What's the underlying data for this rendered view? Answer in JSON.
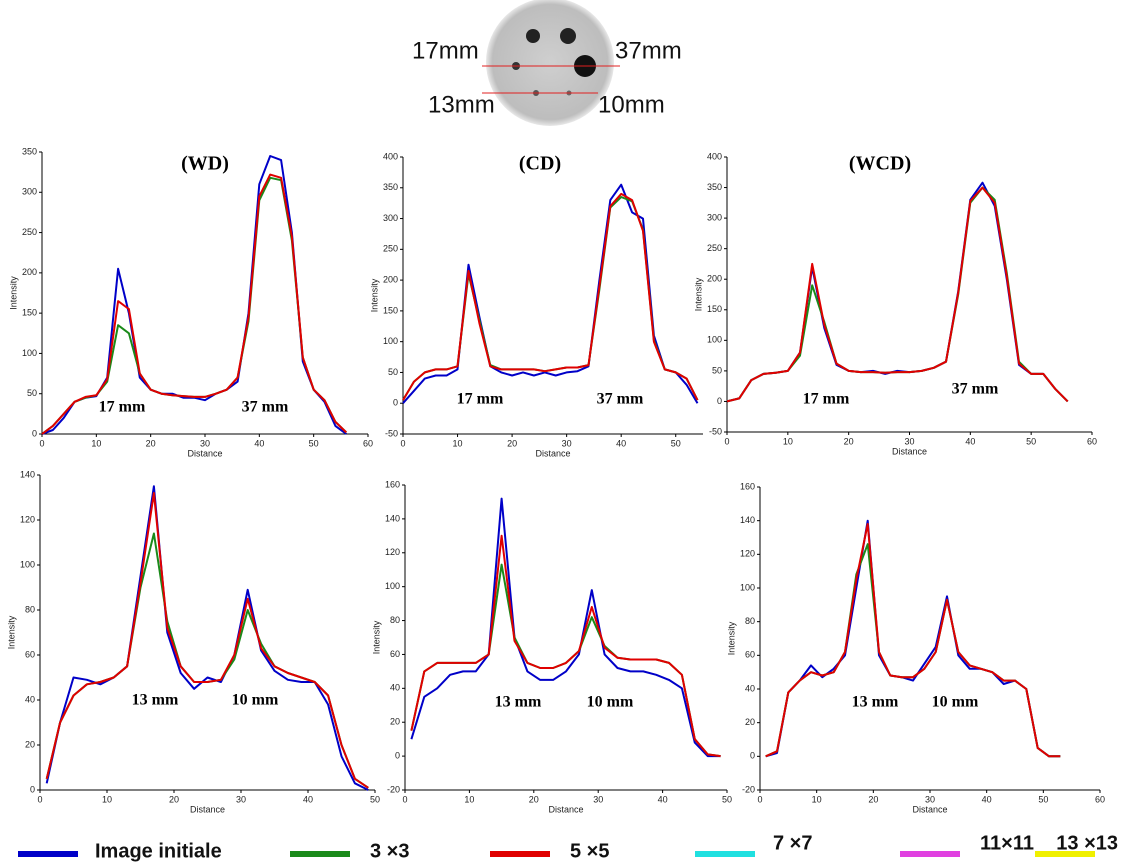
{
  "phantom": {
    "labels": [
      "17mm",
      "37mm",
      "13mm",
      "10mm"
    ]
  },
  "legend": [
    {
      "name": "Image initiale",
      "color": "#0000c8"
    },
    {
      "name": "3 ×3",
      "color": "#1a8a1a"
    },
    {
      "name": "5 ×5",
      "color": "#e00000"
    },
    {
      "name": "7 ×7",
      "color": "#20e0e0"
    },
    {
      "name": "11×11",
      "color": "#e040e0"
    },
    {
      "name": "13 ×13",
      "color": "#f0f000"
    }
  ],
  "chart_data": [
    {
      "type": "line",
      "title": "(WD)",
      "xlabel": "Distance",
      "ylabel": "Intensity",
      "annotations": [
        "17 mm",
        "37 mm"
      ],
      "xlim": [
        0,
        60
      ],
      "ylim": [
        0,
        350
      ],
      "xticks": [
        0,
        10,
        20,
        30,
        40,
        50,
        60
      ],
      "yticks": [
        0,
        50,
        100,
        150,
        200,
        250,
        300,
        350
      ],
      "x": [
        0,
        2,
        4,
        6,
        8,
        10,
        12,
        14,
        16,
        18,
        20,
        22,
        24,
        26,
        28,
        30,
        32,
        34,
        36,
        38,
        40,
        42,
        44,
        46,
        48,
        50,
        52,
        54,
        56
      ],
      "series": [
        {
          "name": "Image initiale",
          "color": "#0000c8",
          "values": [
            0,
            5,
            20,
            40,
            45,
            47,
            70,
            205,
            150,
            70,
            55,
            50,
            50,
            45,
            45,
            42,
            50,
            55,
            65,
            150,
            310,
            345,
            340,
            250,
            90,
            55,
            40,
            10,
            0
          ]
        },
        {
          "name": "3 ×3",
          "color": "#1a8a1a",
          "values": [
            0,
            10,
            25,
            40,
            45,
            48,
            65,
            135,
            125,
            75,
            55,
            50,
            48,
            47,
            46,
            46,
            50,
            55,
            70,
            140,
            290,
            318,
            315,
            240,
            95,
            55,
            42,
            15,
            2
          ]
        },
        {
          "name": "5 ×5",
          "color": "#e00000",
          "values": [
            0,
            10,
            25,
            40,
            46,
            48,
            68,
            165,
            155,
            75,
            55,
            50,
            48,
            47,
            46,
            46,
            50,
            55,
            70,
            145,
            295,
            322,
            318,
            245,
            95,
            55,
            42,
            15,
            2
          ]
        }
      ]
    },
    {
      "type": "line",
      "title": "(CD)",
      "xlabel": "Distance",
      "ylabel": "Intensity",
      "annotations": [
        "17 mm",
        "37 mm"
      ],
      "xlim": [
        0,
        55
      ],
      "ylim": [
        -50,
        400
      ],
      "xticks": [
        0,
        10,
        20,
        30,
        40,
        50
      ],
      "yticks": [
        -50,
        0,
        50,
        100,
        150,
        200,
        250,
        300,
        350,
        400
      ],
      "x": [
        0,
        2,
        4,
        6,
        8,
        10,
        12,
        14,
        16,
        18,
        20,
        22,
        24,
        26,
        28,
        30,
        32,
        34,
        36,
        38,
        40,
        42,
        44,
        46,
        48,
        50,
        52,
        54
      ],
      "series": [
        {
          "name": "Image initiale",
          "color": "#0000c8",
          "values": [
            0,
            20,
            40,
            45,
            45,
            55,
            225,
            140,
            60,
            50,
            45,
            50,
            45,
            50,
            45,
            50,
            52,
            60,
            200,
            330,
            355,
            310,
            300,
            110,
            55,
            50,
            30,
            0
          ]
        },
        {
          "name": "3 ×3",
          "color": "#1a8a1a",
          "values": [
            5,
            35,
            50,
            55,
            55,
            60,
            210,
            135,
            62,
            55,
            55,
            55,
            55,
            52,
            55,
            58,
            58,
            62,
            185,
            318,
            335,
            328,
            282,
            102,
            55,
            50,
            40,
            5
          ]
        },
        {
          "name": "5 ×5",
          "color": "#e00000",
          "values": [
            5,
            35,
            50,
            55,
            55,
            60,
            215,
            130,
            60,
            55,
            55,
            55,
            55,
            52,
            55,
            58,
            58,
            62,
            190,
            320,
            340,
            330,
            280,
            100,
            55,
            50,
            40,
            5
          ]
        }
      ]
    },
    {
      "type": "line",
      "title": "(WCD)",
      "xlabel": "Distance",
      "ylabel": "Intensity",
      "annotations": [
        "17 mm",
        "37 mm"
      ],
      "xlim": [
        0,
        60
      ],
      "ylim": [
        -50,
        400
      ],
      "xticks": [
        0,
        10,
        20,
        30,
        40,
        50,
        60
      ],
      "yticks": [
        -50,
        0,
        50,
        100,
        150,
        200,
        250,
        300,
        350,
        400
      ],
      "x": [
        0,
        2,
        4,
        6,
        8,
        10,
        12,
        14,
        16,
        18,
        20,
        22,
        24,
        26,
        28,
        30,
        32,
        34,
        36,
        38,
        40,
        42,
        44,
        46,
        48,
        50,
        52,
        54,
        56
      ],
      "series": [
        {
          "name": "Image initiale",
          "color": "#0000c8",
          "values": [
            0,
            5,
            35,
            45,
            47,
            50,
            80,
            220,
            120,
            60,
            50,
            48,
            50,
            45,
            50,
            48,
            50,
            55,
            65,
            180,
            330,
            358,
            320,
            200,
            60,
            45,
            45,
            20,
            0
          ]
        },
        {
          "name": "3 ×3",
          "color": "#1a8a1a",
          "values": [
            0,
            5,
            35,
            45,
            47,
            50,
            75,
            190,
            130,
            62,
            50,
            48,
            48,
            47,
            48,
            48,
            50,
            55,
            65,
            175,
            325,
            350,
            330,
            210,
            65,
            45,
            45,
            20,
            0
          ]
        },
        {
          "name": "5 ×5",
          "color": "#e00000",
          "values": [
            0,
            5,
            35,
            45,
            47,
            50,
            80,
            225,
            125,
            62,
            50,
            48,
            48,
            47,
            48,
            48,
            50,
            55,
            65,
            178,
            328,
            350,
            325,
            205,
            62,
            45,
            45,
            20,
            0
          ]
        }
      ]
    },
    {
      "type": "line",
      "xlabel": "Distance",
      "ylabel": "Intensity",
      "annotations": [
        "13 mm",
        "10 mm"
      ],
      "xlim": [
        0,
        50
      ],
      "ylim": [
        0,
        140
      ],
      "xticks": [
        0,
        10,
        20,
        30,
        40,
        50
      ],
      "yticks": [
        0,
        20,
        40,
        60,
        80,
        100,
        120,
        140
      ],
      "x": [
        1,
        3,
        5,
        7,
        9,
        11,
        13,
        15,
        17,
        19,
        21,
        23,
        25,
        27,
        29,
        31,
        33,
        35,
        37,
        39,
        41,
        43,
        45,
        47,
        49
      ],
      "series": [
        {
          "name": "Image initiale",
          "color": "#0000c8",
          "values": [
            3,
            30,
            50,
            49,
            47,
            50,
            55,
            95,
            135,
            70,
            52,
            45,
            50,
            48,
            60,
            89,
            62,
            53,
            49,
            48,
            48,
            38,
            15,
            3,
            0
          ]
        },
        {
          "name": "3 ×3",
          "color": "#1a8a1a",
          "values": [
            5,
            30,
            42,
            47,
            48,
            50,
            55,
            90,
            114,
            75,
            55,
            48,
            48,
            49,
            58,
            80,
            65,
            55,
            52,
            50,
            48,
            42,
            20,
            5,
            1
          ]
        },
        {
          "name": "5 ×5",
          "color": "#e00000",
          "values": [
            5,
            30,
            42,
            47,
            48,
            50,
            55,
            92,
            132,
            72,
            55,
            48,
            48,
            49,
            60,
            85,
            63,
            55,
            52,
            50,
            48,
            42,
            20,
            5,
            1
          ]
        }
      ]
    },
    {
      "type": "line",
      "xlabel": "Distance",
      "ylabel": "Intensity",
      "annotations": [
        "13 mm",
        "10 mm"
      ],
      "xlim": [
        0,
        50
      ],
      "ylim": [
        -20,
        160
      ],
      "xticks": [
        0,
        10,
        20,
        30,
        40,
        50
      ],
      "yticks": [
        -20,
        0,
        20,
        40,
        60,
        80,
        100,
        120,
        140,
        160
      ],
      "x": [
        1,
        3,
        5,
        7,
        9,
        11,
        13,
        15,
        17,
        19,
        21,
        23,
        25,
        27,
        29,
        31,
        33,
        35,
        37,
        39,
        41,
        43,
        45,
        47,
        49
      ],
      "series": [
        {
          "name": "Image initiale",
          "color": "#0000c8",
          "values": [
            10,
            35,
            40,
            48,
            50,
            50,
            60,
            152,
            70,
            50,
            45,
            45,
            50,
            60,
            98,
            60,
            52,
            50,
            50,
            48,
            45,
            40,
            8,
            0,
            0
          ]
        },
        {
          "name": "3 ×3",
          "color": "#1a8a1a",
          "values": [
            15,
            50,
            55,
            55,
            55,
            55,
            60,
            113,
            70,
            55,
            52,
            52,
            55,
            62,
            82,
            65,
            58,
            57,
            57,
            57,
            55,
            48,
            10,
            1,
            0
          ]
        },
        {
          "name": "5 ×5",
          "color": "#e00000",
          "values": [
            15,
            50,
            55,
            55,
            55,
            55,
            60,
            130,
            68,
            55,
            52,
            52,
            55,
            62,
            88,
            64,
            58,
            57,
            57,
            57,
            55,
            48,
            10,
            1,
            0
          ]
        }
      ]
    },
    {
      "type": "line",
      "xlabel": "Distance",
      "ylabel": "Intensity",
      "annotations": [
        "13 mm",
        "10 mm"
      ],
      "xlim": [
        0,
        60
      ],
      "ylim": [
        -20,
        160
      ],
      "xticks": [
        0,
        10,
        20,
        30,
        40,
        50,
        60
      ],
      "yticks": [
        -20,
        0,
        20,
        40,
        60,
        80,
        100,
        120,
        140,
        160
      ],
      "x": [
        1,
        3,
        5,
        7,
        9,
        11,
        13,
        15,
        17,
        19,
        21,
        23,
        25,
        27,
        29,
        31,
        33,
        35,
        37,
        39,
        41,
        43,
        45,
        47,
        49,
        51,
        53
      ],
      "series": [
        {
          "name": "Image initiale",
          "color": "#0000c8",
          "values": [
            0,
            2,
            38,
            45,
            54,
            47,
            52,
            60,
            100,
            140,
            60,
            48,
            47,
            45,
            55,
            65,
            95,
            60,
            52,
            52,
            50,
            43,
            45,
            40,
            5,
            0,
            0
          ]
        },
        {
          "name": "3 ×3",
          "color": "#1a8a1a",
          "values": [
            0,
            3,
            38,
            45,
            50,
            48,
            50,
            62,
            108,
            126,
            62,
            48,
            47,
            47,
            52,
            62,
            93,
            62,
            54,
            52,
            50,
            45,
            45,
            40,
            5,
            0,
            0
          ]
        },
        {
          "name": "5 ×5",
          "color": "#e00000",
          "values": [
            0,
            3,
            38,
            45,
            50,
            48,
            50,
            62,
            105,
            138,
            62,
            48,
            47,
            47,
            52,
            62,
            93,
            62,
            54,
            52,
            50,
            45,
            45,
            40,
            5,
            0,
            0
          ]
        }
      ]
    }
  ]
}
